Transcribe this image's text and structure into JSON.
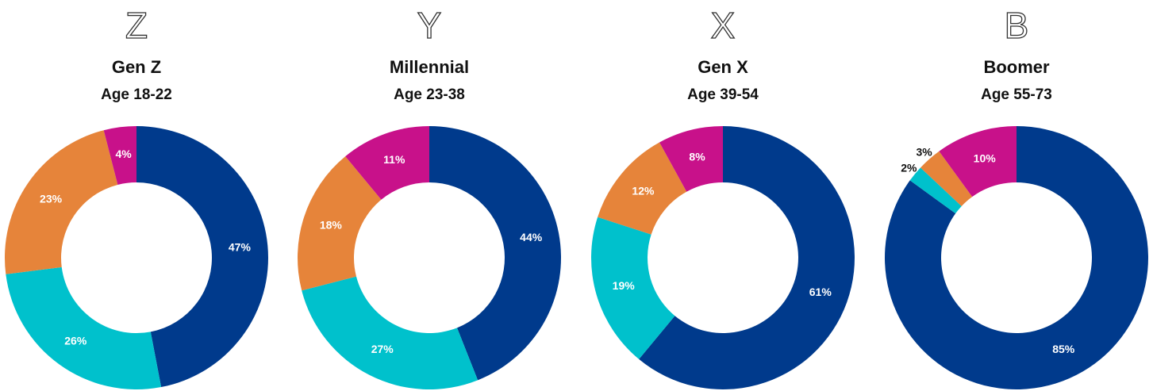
{
  "chart_data": [
    {
      "type": "pie",
      "badge": "Z",
      "title": "Gen Z",
      "subtitle": "Age 18-22",
      "donut": true,
      "values": [
        47,
        26,
        23,
        4
      ],
      "value_labels": [
        "47%",
        "26%",
        "23%",
        "4%"
      ],
      "colors": [
        "#003a8c",
        "#00c1cc",
        "#e6843a",
        "#c8118a"
      ]
    },
    {
      "type": "pie",
      "badge": "Y",
      "title": "Millennial",
      "subtitle": "Age 23-38",
      "donut": true,
      "values": [
        44,
        27,
        18,
        11
      ],
      "value_labels": [
        "44%",
        "27%",
        "18%",
        "11%"
      ],
      "colors": [
        "#003a8c",
        "#00c1cc",
        "#e6843a",
        "#c8118a"
      ]
    },
    {
      "type": "pie",
      "badge": "X",
      "title": "Gen X",
      "subtitle": "Age 39-54",
      "donut": true,
      "values": [
        61,
        19,
        12,
        8
      ],
      "value_labels": [
        "61%",
        "19%",
        "12%",
        "8%"
      ],
      "colors": [
        "#003a8c",
        "#00c1cc",
        "#e6843a",
        "#c8118a"
      ]
    },
    {
      "type": "pie",
      "badge": "B",
      "title": "Boomer",
      "subtitle": "Age 55-73",
      "donut": true,
      "values": [
        85,
        2,
        3,
        10
      ],
      "value_labels": [
        "85%",
        "2%",
        "3%",
        "10%"
      ],
      "colors": [
        "#003a8c",
        "#00c1cc",
        "#e6843a",
        "#c8118a"
      ]
    }
  ]
}
